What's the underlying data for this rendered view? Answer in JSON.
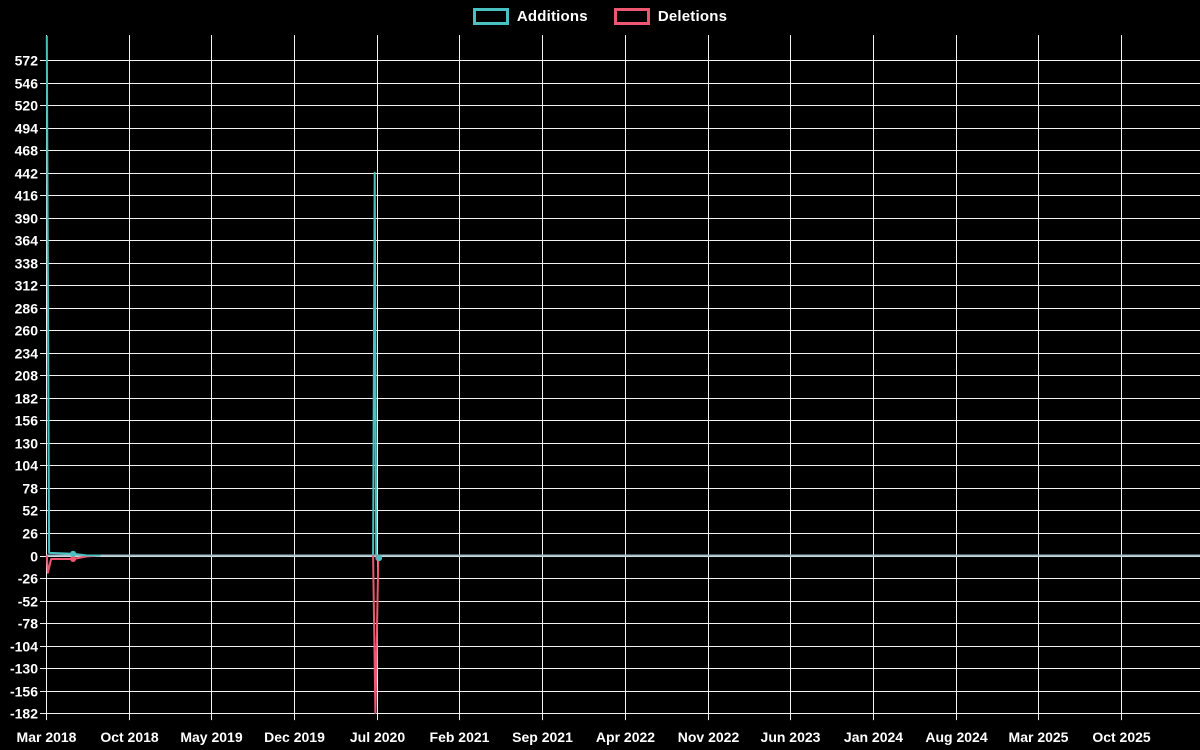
{
  "chart_data": {
    "type": "line",
    "title": "",
    "legend_position": "top-center",
    "grid": true,
    "background_color": "#000000",
    "grid_color": "#f2f2f2",
    "text_color": "#ffffff",
    "flat_zero_line_color": "#a4bfca",
    "x_axis": {
      "label": "",
      "tick_interval_months": 7,
      "ticks": [
        "Mar 2018",
        "Oct 2018",
        "May 2019",
        "Dec 2019",
        "Jul 2020",
        "Feb 2021",
        "Sep 2021",
        "Apr 2022",
        "Nov 2022",
        "Jun 2023",
        "Jan 2024",
        "Aug 2024",
        "Mar 2025",
        "Oct 2025"
      ]
    },
    "y_axis": {
      "label": "",
      "min": -182,
      "max": 572,
      "step": 26,
      "ticks": [
        572,
        546,
        520,
        494,
        468,
        442,
        416,
        390,
        364,
        338,
        312,
        286,
        260,
        234,
        208,
        182,
        156,
        130,
        104,
        78,
        52,
        26,
        0,
        -26,
        -52,
        -78,
        -104,
        -130,
        -156,
        -182
      ]
    },
    "series": [
      {
        "name": "Additions",
        "color": "#4bc0c0",
        "baseline": 0,
        "segments": [
          [
            [
              "2018-03-03",
              600
            ],
            [
              "2018-03-09",
              3
            ],
            [
              "2018-05-10",
              2
            ],
            [
              "2018-06-15",
              0
            ],
            [
              "2018-07-20",
              0
            ]
          ],
          [
            [
              "2020-06-22",
              0
            ],
            [
              "2020-06-26",
              442
            ],
            [
              "2020-06-30",
              0
            ],
            [
              "2020-07-04",
              0
            ],
            [
              "2020-07-07",
              -3
            ],
            [
              "2020-07-12",
              0
            ]
          ]
        ],
        "markers": [
          [
            "2018-05-10",
            2
          ],
          [
            "2020-07-07",
            -3
          ]
        ]
      },
      {
        "name": "Deletions",
        "color": "#ee5772",
        "baseline": 0,
        "segments": [
          [
            [
              "2018-03-03",
              0
            ],
            [
              "2018-03-06",
              -20
            ],
            [
              "2018-03-14",
              -4
            ],
            [
              "2018-05-10",
              -4
            ],
            [
              "2018-06-15",
              -1
            ],
            [
              "2018-07-20",
              0
            ]
          ],
          [
            [
              "2020-06-22",
              0
            ],
            [
              "2020-06-28",
              -182
            ],
            [
              "2020-07-05",
              -3
            ],
            [
              "2020-07-12",
              0
            ]
          ]
        ],
        "markers": [
          [
            "2018-05-10",
            -4
          ],
          [
            "2020-07-05",
            -3
          ]
        ]
      }
    ]
  }
}
